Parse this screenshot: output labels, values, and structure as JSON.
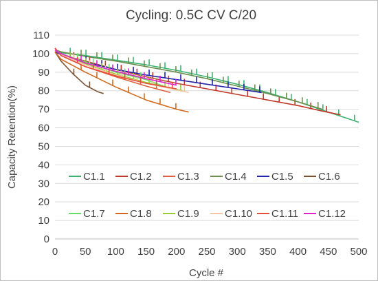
{
  "chart_data": {
    "type": "line",
    "title": "Cycling: 0.5C CV C/20",
    "xlabel": "Cycle #",
    "ylabel": "Capacity Retention(%)",
    "xlim": [
      0,
      500
    ],
    "ylim": [
      0,
      110
    ],
    "xticks": [
      "0",
      "50",
      "100",
      "150",
      "200",
      "250",
      "300",
      "350",
      "400",
      "450",
      "500"
    ],
    "yticks": [
      "0",
      "10",
      "20",
      "30",
      "40",
      "50",
      "60",
      "70",
      "80",
      "90",
      "100",
      "110"
    ],
    "grid": "horizontal",
    "legend_position": "inside-bottom",
    "series": [
      {
        "name": "C1.1",
        "color": "#3cb371",
        "x": [
          0,
          10,
          50,
          100,
          150,
          200,
          250,
          300,
          350,
          400,
          450,
          500
        ],
        "y": [
          101,
          100.5,
          99,
          96.5,
          94,
          91,
          87.5,
          83.5,
          79,
          74,
          68.5,
          63
        ]
      },
      {
        "name": "C1.2",
        "color": "#c0392b",
        "x": [
          0,
          10,
          50,
          100,
          150,
          200,
          250,
          300,
          350,
          400,
          440,
          470
        ],
        "y": [
          101,
          99.5,
          96,
          91.5,
          87.5,
          84,
          81,
          78,
          75,
          72,
          69,
          67
        ]
      },
      {
        "name": "C1.3",
        "color": "#e0603a",
        "x": [
          0,
          10,
          50,
          100,
          150,
          190
        ],
        "y": [
          103,
          99,
          93,
          87.5,
          82.5,
          79
        ]
      },
      {
        "name": "C1.4",
        "color": "#6b8e4e",
        "x": [
          0,
          10,
          50,
          100,
          150,
          200,
          250,
          300,
          350,
          400,
          420,
          440
        ],
        "y": [
          102,
          101,
          98.5,
          96,
          93,
          90,
          86.5,
          82.5,
          78.5,
          74,
          72,
          70
        ]
      },
      {
        "name": "C1.5",
        "color": "#2222aa",
        "x": [
          0,
          10,
          50,
          100,
          150,
          200,
          250,
          300,
          340
        ],
        "y": [
          101,
          99.5,
          95.5,
          91.5,
          88.5,
          86,
          83.5,
          81,
          79
        ]
      },
      {
        "name": "C1.6",
        "color": "#7a5230",
        "x": [
          0,
          10,
          30,
          50,
          70,
          80
        ],
        "y": [
          101,
          96,
          89,
          83,
          79.5,
          78.5
        ]
      },
      {
        "name": "C1.7",
        "color": "#66dd66",
        "x": [
          0,
          10,
          50,
          100,
          150,
          190
        ],
        "y": [
          102,
          100,
          95.5,
          90,
          86,
          81
        ]
      },
      {
        "name": "C1.8",
        "color": "#d2691e",
        "x": [
          0,
          10,
          50,
          100,
          150,
          200,
          220
        ],
        "y": [
          101,
          97,
          90,
          82,
          75,
          70,
          68.5
        ]
      },
      {
        "name": "C1.9",
        "color": "#9acd32",
        "x": [
          0,
          10,
          50,
          100,
          150,
          210
        ],
        "y": [
          102,
          100,
          94.5,
          89,
          84.5,
          80
        ]
      },
      {
        "name": "C1.10",
        "color": "#f5c6a5",
        "x": [
          0,
          10,
          50,
          100,
          150,
          220
        ],
        "y": [
          102,
          99.5,
          94,
          88.5,
          84,
          79
        ]
      },
      {
        "name": "C1.11",
        "color": "#e74c3c",
        "x": [
          0,
          10,
          50,
          100,
          150,
          200
        ],
        "y": [
          103,
          99,
          93,
          88,
          84,
          81
        ]
      },
      {
        "name": "C1.12",
        "color": "#dd22cc",
        "x": [
          0,
          10,
          50,
          100,
          150,
          200
        ],
        "y": [
          102,
          100,
          95,
          90.5,
          86.5,
          83
        ]
      }
    ]
  }
}
